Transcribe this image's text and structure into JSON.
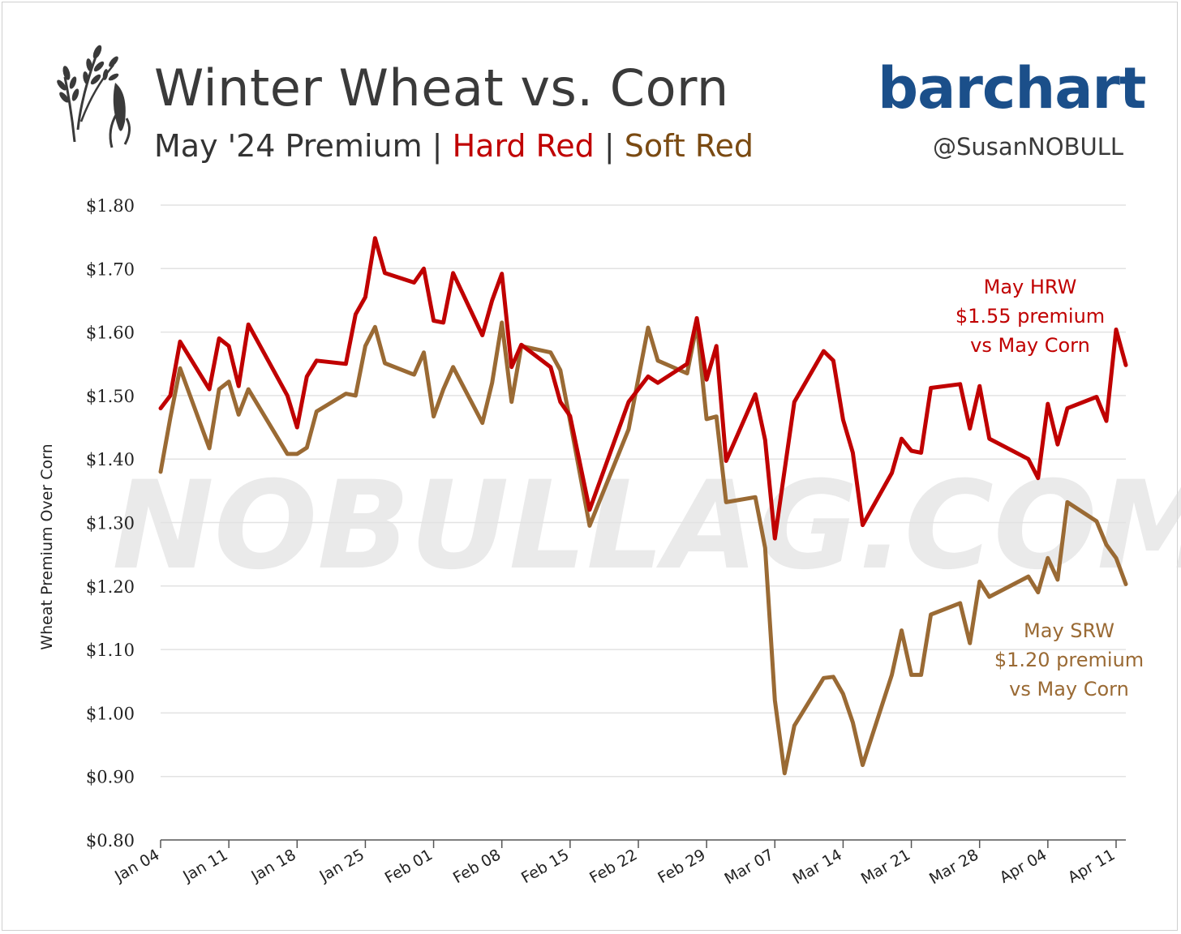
{
  "header": {
    "title": "Winter Wheat vs. Corn",
    "subtitle_prefix": "May '24 Premium | ",
    "subtitle_hard": "Hard Red",
    "subtitle_sep": " | ",
    "subtitle_soft": "Soft Red",
    "brand": "barchart",
    "handle": "@SusanNOBULL",
    "logo_icon": "wheat-corn-icon"
  },
  "watermark": "NOBULLAG.COM",
  "colors": {
    "hrw": "#c00000",
    "srw": "#9a6a34",
    "grid": "#e2e2e2"
  },
  "chart_data": {
    "type": "line",
    "title": "Winter Wheat vs. Corn",
    "ylabel": "Wheat Premium Over Corn",
    "ylim": [
      0.8,
      1.8
    ],
    "yticks": [
      0.8,
      0.9,
      1.0,
      1.1,
      1.2,
      1.3,
      1.4,
      1.5,
      1.6,
      1.7,
      1.8
    ],
    "ytick_labels": [
      "$0.80",
      "$0.90",
      "$1.00",
      "$1.10",
      "$1.20",
      "$1.30",
      "$1.40",
      "$1.50",
      "$1.60",
      "$1.70",
      "$1.80"
    ],
    "x_start": "2024-01-04",
    "x_end": "2024-04-12",
    "xticks": [
      "2024-01-04",
      "2024-01-11",
      "2024-01-18",
      "2024-01-25",
      "2024-02-01",
      "2024-02-08",
      "2024-02-15",
      "2024-02-22",
      "2024-02-29",
      "2024-03-07",
      "2024-03-14",
      "2024-03-21",
      "2024-03-28",
      "2024-04-04",
      "2024-04-11"
    ],
    "xtick_labels": [
      "Jan 04",
      "Jan 11",
      "Jan 18",
      "Jan 25",
      "Feb 01",
      "Feb 08",
      "Feb 15",
      "Feb 22",
      "Feb 29",
      "Mar 07",
      "Mar 14",
      "Mar 21",
      "Mar 28",
      "Apr 04",
      "Apr 11"
    ],
    "grid": true,
    "series": [
      {
        "name": "Hard Red",
        "color": "#c00000",
        "points": [
          [
            "2024-01-04",
            1.48
          ],
          [
            "2024-01-05",
            1.5
          ],
          [
            "2024-01-06",
            1.585
          ],
          [
            "2024-01-09",
            1.51
          ],
          [
            "2024-01-10",
            1.59
          ],
          [
            "2024-01-11",
            1.578
          ],
          [
            "2024-01-12",
            1.515
          ],
          [
            "2024-01-13",
            1.612
          ],
          [
            "2024-01-17",
            1.5
          ],
          [
            "2024-01-18",
            1.45
          ],
          [
            "2024-01-19",
            1.53
          ],
          [
            "2024-01-20",
            1.555
          ],
          [
            "2024-01-23",
            1.55
          ],
          [
            "2024-01-24",
            1.628
          ],
          [
            "2024-01-25",
            1.655
          ],
          [
            "2024-01-26",
            1.748
          ],
          [
            "2024-01-27",
            1.693
          ],
          [
            "2024-01-30",
            1.678
          ],
          [
            "2024-01-31",
            1.7
          ],
          [
            "2024-02-01",
            1.618
          ],
          [
            "2024-02-02",
            1.615
          ],
          [
            "2024-02-03",
            1.693
          ],
          [
            "2024-02-06",
            1.595
          ],
          [
            "2024-02-07",
            1.65
          ],
          [
            "2024-02-08",
            1.692
          ],
          [
            "2024-02-09",
            1.545
          ],
          [
            "2024-02-10",
            1.58
          ],
          [
            "2024-02-13",
            1.545
          ],
          [
            "2024-02-14",
            1.49
          ],
          [
            "2024-02-15",
            1.468
          ],
          [
            "2024-02-17",
            1.32
          ],
          [
            "2024-02-21",
            1.49
          ],
          [
            "2024-02-23",
            1.53
          ],
          [
            "2024-02-24",
            1.52
          ],
          [
            "2024-02-27",
            1.55
          ],
          [
            "2024-02-28",
            1.622
          ],
          [
            "2024-02-29",
            1.525
          ],
          [
            "2024-03-01",
            1.578
          ],
          [
            "2024-03-02",
            1.397
          ],
          [
            "2024-03-05",
            1.502
          ],
          [
            "2024-03-06",
            1.43
          ],
          [
            "2024-03-07",
            1.275
          ],
          [
            "2024-03-09",
            1.49
          ],
          [
            "2024-03-12",
            1.57
          ],
          [
            "2024-03-13",
            1.555
          ],
          [
            "2024-03-14",
            1.462
          ],
          [
            "2024-03-15",
            1.41
          ],
          [
            "2024-03-16",
            1.296
          ],
          [
            "2024-03-19",
            1.378
          ],
          [
            "2024-03-20",
            1.432
          ],
          [
            "2024-03-21",
            1.413
          ],
          [
            "2024-03-22",
            1.41
          ],
          [
            "2024-03-23",
            1.512
          ],
          [
            "2024-03-26",
            1.518
          ],
          [
            "2024-03-27",
            1.448
          ],
          [
            "2024-03-28",
            1.515
          ],
          [
            "2024-03-29",
            1.432
          ],
          [
            "2024-04-02",
            1.4
          ],
          [
            "2024-04-03",
            1.37
          ],
          [
            "2024-04-04",
            1.487
          ],
          [
            "2024-04-05",
            1.423
          ],
          [
            "2024-04-06",
            1.48
          ],
          [
            "2024-04-09",
            1.498
          ],
          [
            "2024-04-10",
            1.46
          ],
          [
            "2024-04-11",
            1.604
          ],
          [
            "2024-04-12",
            1.548
          ]
        ]
      },
      {
        "name": "Soft Red",
        "color": "#9a6a34",
        "points": [
          [
            "2024-01-04",
            1.38
          ],
          [
            "2024-01-05",
            1.465
          ],
          [
            "2024-01-06",
            1.543
          ],
          [
            "2024-01-09",
            1.417
          ],
          [
            "2024-01-10",
            1.51
          ],
          [
            "2024-01-11",
            1.522
          ],
          [
            "2024-01-12",
            1.47
          ],
          [
            "2024-01-13",
            1.51
          ],
          [
            "2024-01-17",
            1.408
          ],
          [
            "2024-01-18",
            1.408
          ],
          [
            "2024-01-19",
            1.418
          ],
          [
            "2024-01-20",
            1.475
          ],
          [
            "2024-01-23",
            1.503
          ],
          [
            "2024-01-24",
            1.5
          ],
          [
            "2024-01-25",
            1.578
          ],
          [
            "2024-01-26",
            1.608
          ],
          [
            "2024-01-27",
            1.551
          ],
          [
            "2024-01-30",
            1.533
          ],
          [
            "2024-01-31",
            1.568
          ],
          [
            "2024-02-01",
            1.467
          ],
          [
            "2024-02-02",
            1.51
          ],
          [
            "2024-02-03",
            1.545
          ],
          [
            "2024-02-06",
            1.457
          ],
          [
            "2024-02-07",
            1.52
          ],
          [
            "2024-02-08",
            1.615
          ],
          [
            "2024-02-09",
            1.49
          ],
          [
            "2024-02-10",
            1.578
          ],
          [
            "2024-02-13",
            1.568
          ],
          [
            "2024-02-14",
            1.54
          ],
          [
            "2024-02-15",
            1.46
          ],
          [
            "2024-02-17",
            1.295
          ],
          [
            "2024-02-21",
            1.447
          ],
          [
            "2024-02-23",
            1.607
          ],
          [
            "2024-02-24",
            1.555
          ],
          [
            "2024-02-27",
            1.535
          ],
          [
            "2024-02-28",
            1.612
          ],
          [
            "2024-02-29",
            1.463
          ],
          [
            "2024-03-01",
            1.467
          ],
          [
            "2024-03-02",
            1.332
          ],
          [
            "2024-03-05",
            1.34
          ],
          [
            "2024-03-06",
            1.26
          ],
          [
            "2024-03-07",
            1.02
          ],
          [
            "2024-03-08",
            0.905
          ],
          [
            "2024-03-09",
            0.98
          ],
          [
            "2024-03-12",
            1.055
          ],
          [
            "2024-03-13",
            1.057
          ],
          [
            "2024-03-14",
            1.03
          ],
          [
            "2024-03-15",
            0.985
          ],
          [
            "2024-03-16",
            0.918
          ],
          [
            "2024-03-19",
            1.06
          ],
          [
            "2024-03-20",
            1.13
          ],
          [
            "2024-03-21",
            1.06
          ],
          [
            "2024-03-22",
            1.06
          ],
          [
            "2024-03-23",
            1.155
          ],
          [
            "2024-03-26",
            1.173
          ],
          [
            "2024-03-27",
            1.11
          ],
          [
            "2024-03-28",
            1.207
          ],
          [
            "2024-03-29",
            1.183
          ],
          [
            "2024-04-02",
            1.215
          ],
          [
            "2024-04-03",
            1.19
          ],
          [
            "2024-04-04",
            1.244
          ],
          [
            "2024-04-05",
            1.21
          ],
          [
            "2024-04-06",
            1.332
          ],
          [
            "2024-04-09",
            1.302
          ],
          [
            "2024-04-10",
            1.265
          ],
          [
            "2024-04-11",
            1.244
          ],
          [
            "2024-04-12",
            1.203
          ]
        ]
      }
    ],
    "annotations": [
      {
        "series": "Hard Red",
        "lines": [
          "May HRW",
          "$1.55 premium",
          "vs May Corn"
        ]
      },
      {
        "series": "Soft Red",
        "lines": [
          "May SRW",
          "$1.20 premium",
          "vs May Corn"
        ]
      }
    ]
  }
}
